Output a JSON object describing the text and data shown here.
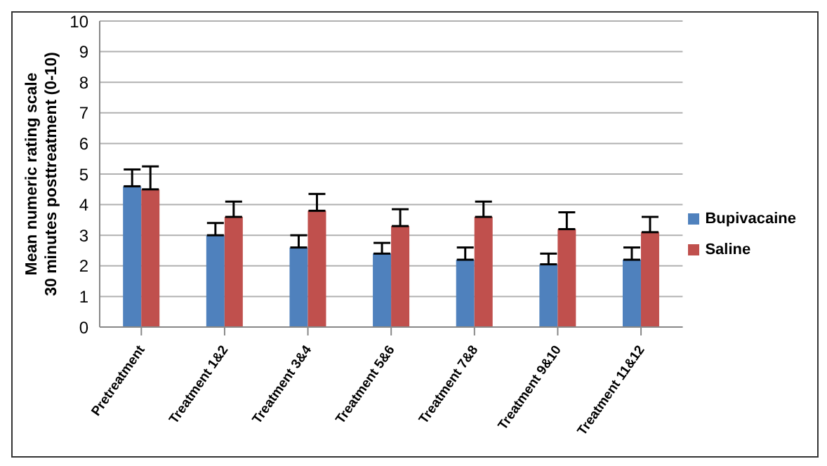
{
  "chart_data": {
    "type": "bar",
    "ylabel": "Mean numeric rating scale\n30 minutes posttreatment (0-10)",
    "categories": [
      "Pretreatment",
      "Treatment 1&2",
      "Treatment 3&4",
      "Treatment 5&6",
      "Treatment 7&8",
      "Treatment 9&10",
      "Treatment 11&12"
    ],
    "series": [
      {
        "name": "Bupivacaine",
        "color": "#4f81bd",
        "values": [
          4.6,
          3.0,
          2.6,
          2.4,
          2.2,
          2.05,
          2.2
        ],
        "errors": [
          [
            4.6,
            5.15
          ],
          [
            3.0,
            3.4
          ],
          [
            2.6,
            3.0
          ],
          [
            2.4,
            2.75
          ],
          [
            2.2,
            2.6
          ],
          [
            2.05,
            2.4
          ],
          [
            2.2,
            2.6
          ]
        ]
      },
      {
        "name": "Saline",
        "color": "#c0504d",
        "values": [
          4.5,
          3.6,
          3.8,
          3.3,
          3.6,
          3.2,
          3.1
        ],
        "errors": [
          [
            4.5,
            5.25
          ],
          [
            3.6,
            4.1
          ],
          [
            3.8,
            4.35
          ],
          [
            3.3,
            3.85
          ],
          [
            3.6,
            4.1
          ],
          [
            3.2,
            3.75
          ],
          [
            3.1,
            3.6
          ]
        ]
      }
    ],
    "ylim": [
      0,
      10
    ],
    "yticks": [
      0,
      1,
      2,
      3,
      4,
      5,
      6,
      7,
      8,
      9,
      10
    ],
    "grid": "y",
    "legend": "right"
  }
}
